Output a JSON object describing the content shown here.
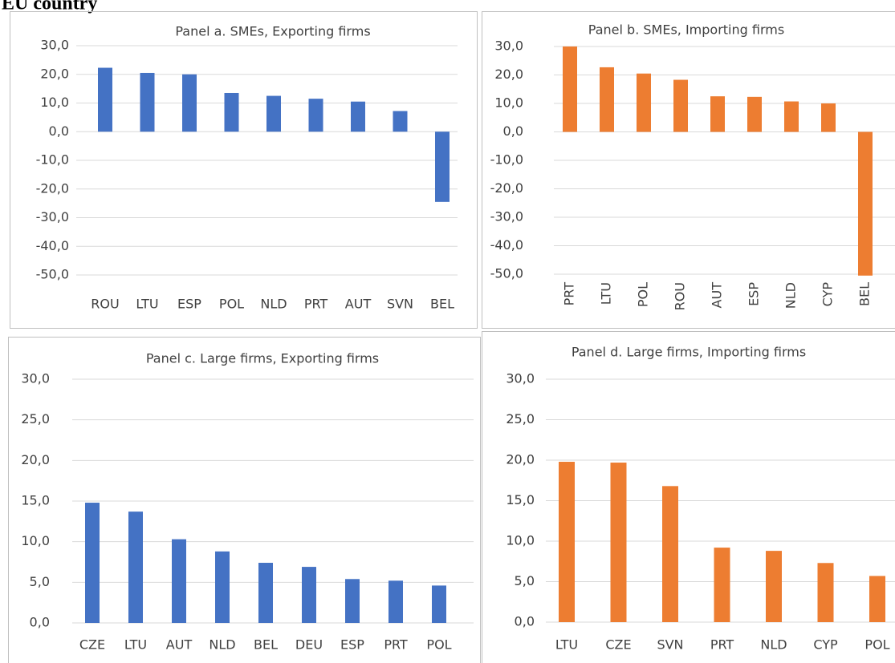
{
  "header": "EU country",
  "chart_data": [
    {
      "type": "bar",
      "title": "Panel a. SMEs, Exporting firms",
      "categories": [
        "ROU",
        "LTU",
        "ESP",
        "POL",
        "NLD",
        "PRT",
        "AUT",
        "SVN",
        "BEL"
      ],
      "values": [
        22.3,
        20.5,
        20.0,
        13.5,
        12.5,
        11.5,
        10.5,
        7.2,
        -24.5
      ],
      "color": "#4472c4",
      "ylim": [
        -50,
        30
      ],
      "yticks": [
        {
          "value": -50,
          "label": "-50,0"
        },
        {
          "value": -40,
          "label": "-40,0"
        },
        {
          "value": -30,
          "label": "-30,0"
        },
        {
          "value": -20,
          "label": "-20,0"
        },
        {
          "value": -10,
          "label": "-10,0"
        },
        {
          "value": 0,
          "label": "0,0"
        },
        {
          "value": 10,
          "label": "10,0"
        },
        {
          "value": 20,
          "label": "20,0"
        },
        {
          "value": 30,
          "label": "30,0"
        }
      ],
      "grid": true
    },
    {
      "type": "bar",
      "title": "Panel b. SMEs, Importing firms",
      "categories": [
        "PRT",
        "LTU",
        "POL",
        "ROU",
        "AUT",
        "ESP",
        "NLD",
        "CYP",
        "BEL"
      ],
      "values": [
        30.0,
        22.7,
        20.5,
        18.3,
        12.5,
        12.3,
        10.7,
        10.0,
        -50.5
      ],
      "color": "#ed7d31",
      "ylim": [
        -50,
        30
      ],
      "xlabel_rotation": -90,
      "yticks": [
        {
          "value": -50,
          "label": "-50,0"
        },
        {
          "value": -40,
          "label": "-40,0"
        },
        {
          "value": -30,
          "label": "-30,0"
        },
        {
          "value": -20,
          "label": "-20,0"
        },
        {
          "value": -10,
          "label": "-10,0"
        },
        {
          "value": 0,
          "label": "0,0"
        },
        {
          "value": 10,
          "label": "10,0"
        },
        {
          "value": 20,
          "label": "20,0"
        },
        {
          "value": 30,
          "label": "30,0"
        }
      ],
      "grid": true
    },
    {
      "type": "bar",
      "title": "Panel c. Large firms, Exporting firms",
      "categories": [
        "CZE",
        "LTU",
        "AUT",
        "NLD",
        "BEL",
        "DEU",
        "ESP",
        "PRT",
        "POL"
      ],
      "values": [
        14.8,
        13.7,
        10.3,
        8.8,
        7.4,
        6.9,
        5.4,
        5.2,
        4.6
      ],
      "color": "#4472c4",
      "ylim": [
        0,
        30
      ],
      "yticks": [
        {
          "value": 0,
          "label": "0,0"
        },
        {
          "value": 5,
          "label": "5,0"
        },
        {
          "value": 10,
          "label": "10,0"
        },
        {
          "value": 15,
          "label": "15,0"
        },
        {
          "value": 20,
          "label": "20,0"
        },
        {
          "value": 25,
          "label": "25,0"
        },
        {
          "value": 30,
          "label": "30,0"
        }
      ],
      "grid": true
    },
    {
      "type": "bar",
      "title": "Panel d. Large firms, Importing firms",
      "categories": [
        "LTU",
        "CZE",
        "SVN",
        "PRT",
        "NLD",
        "CYP",
        "POL"
      ],
      "values": [
        19.8,
        19.7,
        16.8,
        9.2,
        8.8,
        7.3,
        5.7
      ],
      "color": "#ed7d31",
      "ylim": [
        0,
        30
      ],
      "yticks": [
        {
          "value": 0,
          "label": "0,0"
        },
        {
          "value": 5,
          "label": "5,0"
        },
        {
          "value": 10,
          "label": "10,0"
        },
        {
          "value": 15,
          "label": "15,0"
        },
        {
          "value": 20,
          "label": "20,0"
        },
        {
          "value": 25,
          "label": "25,0"
        },
        {
          "value": 30,
          "label": "30,0"
        }
      ],
      "grid": true
    }
  ]
}
